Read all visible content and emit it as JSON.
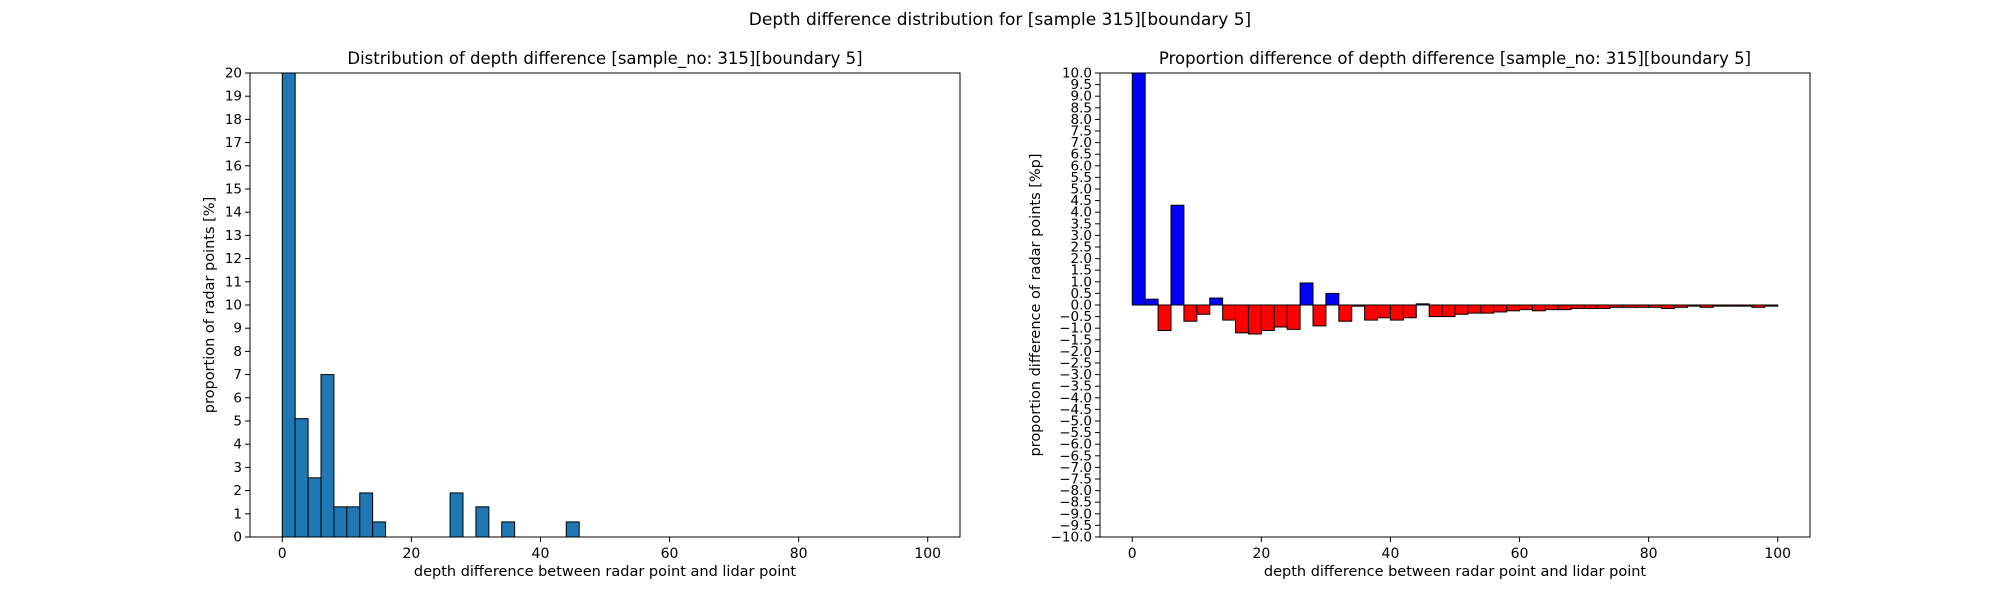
{
  "figure": {
    "suptitle": "Depth difference distribution for [sample 315][boundary 5]"
  },
  "chart_data": [
    {
      "type": "bar",
      "title": "Distribution of depth difference [sample_no: 315][boundary 5]",
      "xlabel": "depth difference between radar point and lidar point",
      "ylabel": "proportion of radar points [%]",
      "xlim": [
        -5,
        105
      ],
      "ylim": [
        0,
        20
      ],
      "x_ticks": [
        0,
        20,
        40,
        60,
        80,
        100
      ],
      "y_ticks": [
        0,
        1,
        2,
        3,
        4,
        5,
        6,
        7,
        8,
        9,
        10,
        11,
        12,
        13,
        14,
        15,
        16,
        17,
        18,
        19,
        20
      ],
      "bin_width": 2,
      "bin_starts": [
        0,
        2,
        4,
        6,
        8,
        10,
        12,
        14,
        16,
        18,
        20,
        22,
        24,
        26,
        28,
        30,
        32,
        34,
        36,
        38,
        40,
        42,
        44,
        46,
        48
      ],
      "values": [
        20,
        5.1,
        2.55,
        7.0,
        1.3,
        1.3,
        1.9,
        0.65,
        0,
        0,
        0,
        0,
        0,
        1.9,
        0,
        1.3,
        0,
        0.65,
        0,
        0,
        0,
        0,
        0.65,
        0,
        0
      ],
      "bar_color": "#1f77b4",
      "edge_color": "#000000",
      "grid": false
    },
    {
      "type": "bar",
      "title": "Proportion difference of depth difference [sample_no: 315][boundary 5]",
      "xlabel": "depth difference between radar point and lidar point",
      "ylabel": "proportion difference of radar points [%p]",
      "xlim": [
        -5,
        105
      ],
      "ylim": [
        -10,
        10
      ],
      "x_ticks": [
        0,
        20,
        40,
        60,
        80,
        100
      ],
      "y_ticks": [
        "10.0",
        "9.5",
        "9.0",
        "8.5",
        "8.0",
        "7.5",
        "7.0",
        "6.5",
        "6.0",
        "5.5",
        "5.0",
        "4.5",
        "4.0",
        "3.5",
        "3.0",
        "2.5",
        "2.0",
        "1.5",
        "1.0",
        "0.5",
        "0.0",
        "−0.5",
        "−1.0",
        "−1.5",
        "−2.0",
        "−2.5",
        "−3.0",
        "−3.5",
        "−4.0",
        "−4.5",
        "−5.0",
        "−5.5",
        "−6.0",
        "−6.5",
        "−7.0",
        "−7.5",
        "−8.0",
        "−8.5",
        "−9.0",
        "−9.5",
        "−10.0"
      ],
      "bin_width": 2,
      "bin_starts": [
        0,
        2,
        4,
        6,
        8,
        10,
        12,
        14,
        16,
        18,
        20,
        22,
        24,
        26,
        28,
        30,
        32,
        34,
        36,
        38,
        40,
        42,
        44,
        46,
        48,
        50,
        52,
        54,
        56,
        58,
        60,
        62,
        64,
        66,
        68,
        70,
        72,
        74,
        76,
        78,
        80,
        82,
        84,
        86,
        88,
        90,
        92,
        94,
        96,
        98
      ],
      "values": [
        10.0,
        0.25,
        -1.1,
        4.3,
        -0.7,
        -0.4,
        0.3,
        -0.65,
        -1.2,
        -1.25,
        -1.1,
        -0.95,
        -1.05,
        0.95,
        -0.9,
        0.5,
        -0.7,
        -0.05,
        -0.65,
        -0.55,
        -0.65,
        -0.55,
        0.05,
        -0.5,
        -0.5,
        -0.4,
        -0.35,
        -0.35,
        -0.3,
        -0.25,
        -0.2,
        -0.25,
        -0.2,
        -0.2,
        -0.15,
        -0.15,
        -0.15,
        -0.1,
        -0.1,
        -0.1,
        -0.1,
        -0.15,
        -0.1,
        -0.05,
        -0.1,
        -0.05,
        -0.05,
        -0.05,
        -0.1,
        -0.05
      ],
      "positive_color": "#0000ff",
      "negative_color": "#ff0000",
      "edge_color": "#000000",
      "grid": false
    }
  ]
}
